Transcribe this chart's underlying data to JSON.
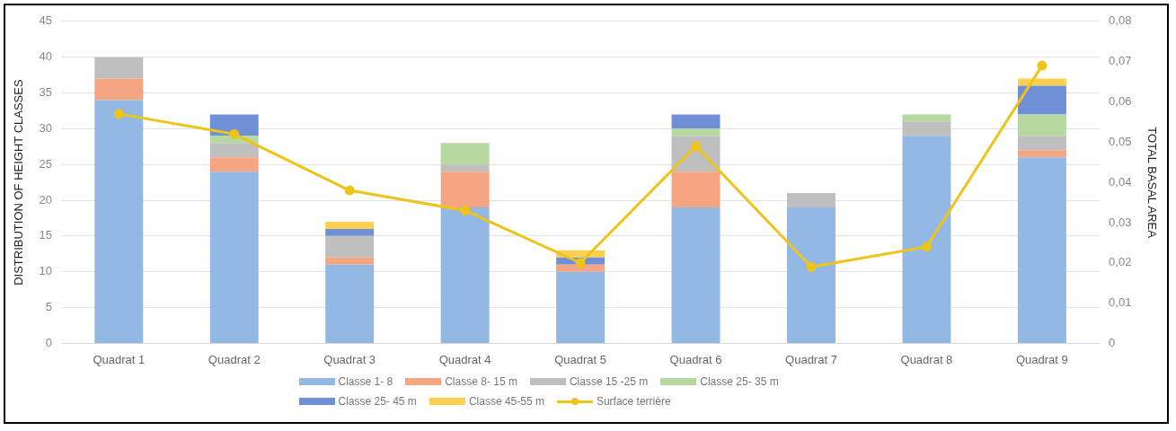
{
  "chart_data": {
    "type": "bar",
    "stacked": true,
    "ylabel": "DISTRIBUTION OF HEIGHT CLASSES",
    "y2label": "TOTAL BASAL AREA",
    "categories": [
      "Quadrat 1",
      "Quadrat 2",
      "Quadrat 3",
      "Quadrat 4",
      "Quadrat 5",
      "Quadrat 6",
      "Quadrat 7",
      "Quadrat 8",
      "Quadrat 9"
    ],
    "series": [
      {
        "name": "Classe 1- 8",
        "color": "#94b8e4",
        "values": [
          34,
          24,
          11,
          19,
          10,
          19,
          19,
          29,
          26
        ]
      },
      {
        "name": "Classe 8- 15 m",
        "color": "#f4a582",
        "values": [
          3,
          2,
          1,
          5,
          1,
          5,
          0,
          0,
          1
        ]
      },
      {
        "name": "Classe 15 -25 m",
        "color": "#bfbfbf",
        "values": [
          3,
          2,
          3,
          1,
          0,
          5,
          2,
          2,
          2
        ]
      },
      {
        "name": "Classe 25- 35 m",
        "color": "#b5d9a0",
        "values": [
          0,
          1,
          0,
          3,
          0,
          1,
          0,
          1,
          3
        ]
      },
      {
        "name": "Classe 25- 45 m",
        "color": "#6f8fd6",
        "values": [
          0,
          3,
          1,
          0,
          1,
          2,
          0,
          0,
          4
        ]
      },
      {
        "name": "Classe 45-55 m",
        "color": "#ffd04f",
        "values": [
          0,
          0,
          1,
          0,
          1,
          0,
          0,
          0,
          1
        ]
      },
      {
        "name": "Surface terrière",
        "type": "line",
        "axis": "y2",
        "color": "#eec419",
        "marker": "circle",
        "values": [
          0.057,
          0.052,
          0.038,
          0.033,
          0.02,
          0.049,
          0.019,
          0.024,
          0.069
        ]
      }
    ],
    "ylim": [
      0,
      45
    ],
    "yticks": [
      0,
      5,
      10,
      15,
      20,
      25,
      30,
      35,
      40,
      45
    ],
    "y2lim": [
      0,
      0.08
    ],
    "y2ticks": [
      {
        "value": 0,
        "label": "0"
      },
      {
        "value": 0.01,
        "label": "0,01"
      },
      {
        "value": 0.02,
        "label": "0,02"
      },
      {
        "value": 0.03,
        "label": "0,03"
      },
      {
        "value": 0.04,
        "label": "0,04"
      },
      {
        "value": 0.05,
        "label": "0,05"
      },
      {
        "value": 0.06,
        "label": "0,06"
      },
      {
        "value": 0.07,
        "label": "0,07"
      },
      {
        "value": 0.08,
        "label": "0,08"
      }
    ],
    "grid": "y",
    "legend": "bottom"
  }
}
